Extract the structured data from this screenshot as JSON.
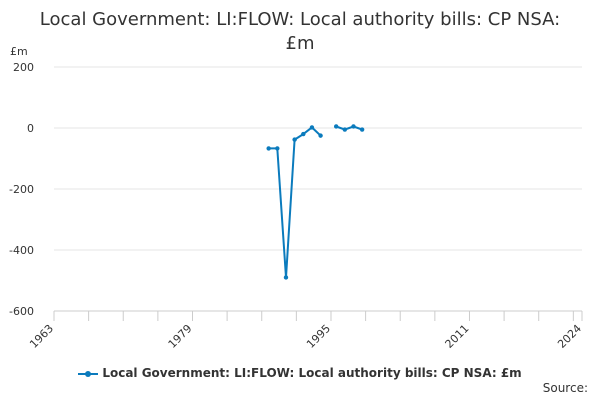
{
  "chart_data": {
    "type": "line",
    "title": "Local Government: LI:FLOW: Local authority bills: CP NSA: £m",
    "ylabel": "£m",
    "xlim": [
      1963,
      2024
    ],
    "ylim": [
      -600,
      200
    ],
    "y_ticks": [
      200,
      0,
      -200,
      -400,
      -600
    ],
    "x_ticks": [
      1963,
      1979,
      1995,
      2011,
      2024
    ],
    "series": [
      {
        "name": "Local Government: LI:FLOW: Local authority bills: CP NSA: £m",
        "color": "#0b7bbd",
        "points": [
          {
            "x": 1987.8,
            "y": -67
          },
          {
            "x": 1988.8,
            "y": -67
          },
          {
            "x": 1989.8,
            "y": -490
          },
          {
            "x": 1990.8,
            "y": -38
          },
          {
            "x": 1991.8,
            "y": -20
          },
          {
            "x": 1992.8,
            "y": 2
          },
          {
            "x": 1993.8,
            "y": -25
          },
          {
            "x": 1995.6,
            "y": 5
          },
          {
            "x": 1996.6,
            "y": -5
          },
          {
            "x": 1997.6,
            "y": 5
          },
          {
            "x": 1998.6,
            "y": -5
          }
        ],
        "segments": [
          [
            0,
            6
          ],
          [
            7,
            10
          ]
        ]
      }
    ],
    "legend": [
      "Local Government: LI:FLOW: Local authority bills: CP NSA: £m"
    ],
    "source_label": "Source:"
  },
  "header": {
    "title_line1": "Local Government: LI:FLOW: Local authority bills: CP NSA:",
    "title_line2": "£m",
    "unit": "£m"
  }
}
